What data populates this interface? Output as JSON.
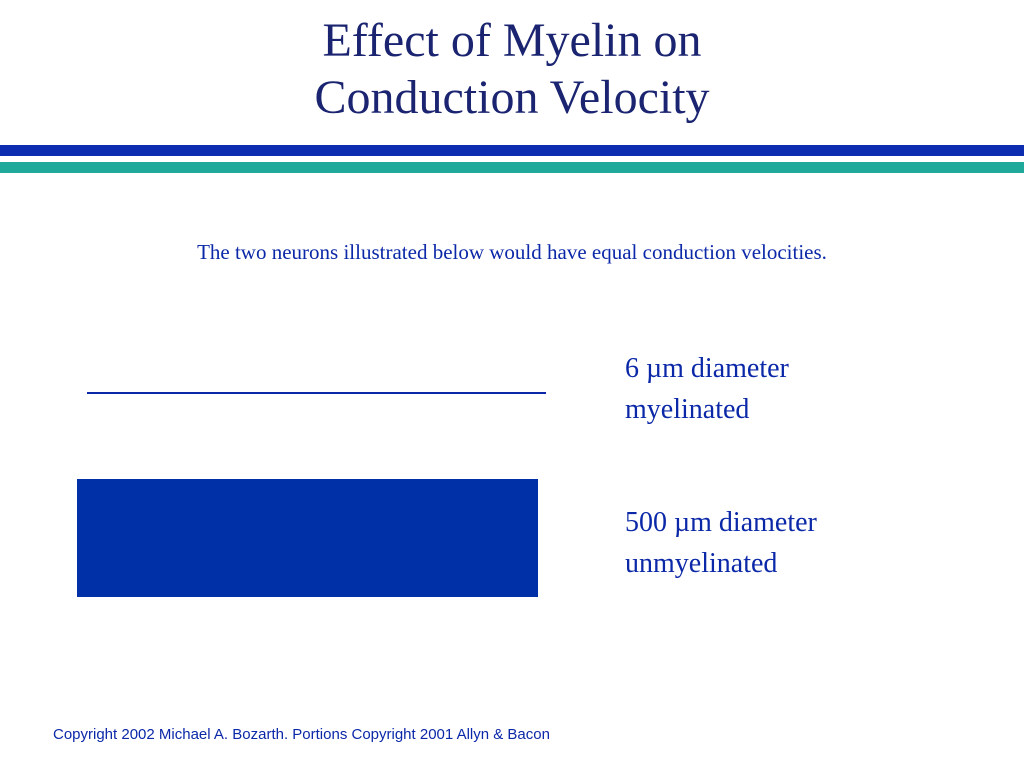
{
  "title": {
    "line1": "Effect of Myelin on",
    "line2": "Conduction Velocity"
  },
  "subtitle": "The two neurons illustrated below would have equal conduction velocities.",
  "neurons": [
    {
      "line1": "6 µm diameter",
      "line2": "myelinated"
    },
    {
      "line1": "500 µm diameter",
      "line2": "unmyelinated"
    }
  ],
  "copyright": "Copyright 2002 Michael A. Bozarth. Portions Copyright 2001 Allyn & Bacon",
  "colors": {
    "title": "#1a2470",
    "text": "#0b28a8",
    "rule_blue": "#0d2db0",
    "rule_teal": "#1fa99b",
    "axon": "#0030a8"
  }
}
